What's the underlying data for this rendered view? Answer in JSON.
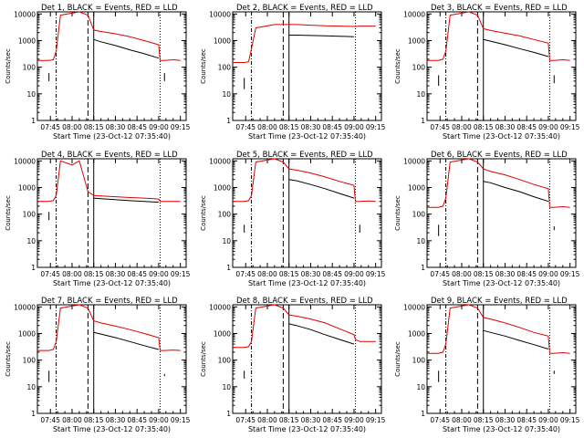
{
  "colors": {
    "events": "#000000",
    "lld": "#e00000",
    "background": "#ffffff"
  },
  "common": {
    "xlabel": "Start Time (23-Oct-12 07:35:40)",
    "ylabel": "Counts/sec",
    "x_tick_labels": [
      "07:45",
      "08:00",
      "08:15",
      "08:30",
      "08:45",
      "09:00",
      "09:15"
    ],
    "y_tick_labels": [
      "1",
      "10",
      "100",
      "1000",
      "10000"
    ],
    "ylim": [
      1,
      12000
    ],
    "y_scale": "log",
    "markers": {
      "dash_dot": "07:49",
      "dashed": "08:11",
      "solid": "08:15",
      "dotted": "09:01"
    }
  },
  "chart_data": [
    {
      "type": "line",
      "title": "Det 1, BLACK = Events, RED = LLD",
      "x": [
        "07:36",
        "07:44",
        "07:47",
        "07:49",
        "07:52",
        "08:05",
        "08:11",
        "08:15",
        "08:20",
        "08:30",
        "08:40",
        "08:50",
        "09:00",
        "09:01",
        "09:04",
        "09:10",
        "09:15"
      ],
      "series": [
        {
          "name": "LLD",
          "values": [
            180,
            180,
            190,
            400,
            9000,
            12000,
            9000,
            2500,
            2200,
            1800,
            1400,
            1000,
            700,
            180,
            180,
            190,
            180
          ]
        },
        {
          "name": "Events",
          "values": [
            null,
            null,
            null,
            null,
            null,
            null,
            null,
            1100,
            900,
            650,
            450,
            320,
            220,
            null,
            null,
            null,
            null
          ]
        }
      ],
      "short_segments": [
        {
          "time": "07:44",
          "values": [
            60,
            30
          ]
        },
        {
          "time": "09:04",
          "values": [
            60,
            30
          ]
        }
      ]
    },
    {
      "type": "line",
      "title": "Det 2, BLACK = Events, RED = LLD",
      "x": [
        "07:36",
        "07:44",
        "07:47",
        "07:49",
        "07:52",
        "08:05",
        "08:11",
        "08:15",
        "08:20",
        "08:30",
        "08:40",
        "08:50",
        "09:00",
        "09:01",
        "09:04",
        "09:10",
        "09:15"
      ],
      "series": [
        {
          "name": "LLD",
          "values": [
            150,
            150,
            160,
            500,
            3000,
            4000,
            4000,
            4000,
            4000,
            3800,
            3600,
            3500,
            3400,
            3400,
            3500,
            3500,
            3500
          ]
        },
        {
          "name": "Events",
          "values": [
            null,
            null,
            null,
            null,
            null,
            null,
            null,
            1600,
            1600,
            1550,
            1500,
            1450,
            1400,
            null,
            null,
            null,
            null
          ]
        }
      ],
      "short_segments": [
        {
          "time": "07:44",
          "values": [
            40,
            15
          ]
        }
      ]
    },
    {
      "type": "line",
      "title": "Det 3, BLACK = Events, RED = LLD",
      "x": [
        "07:36",
        "07:44",
        "07:47",
        "07:49",
        "07:52",
        "08:05",
        "08:11",
        "08:15",
        "08:20",
        "08:30",
        "08:40",
        "08:50",
        "09:00",
        "09:01",
        "09:04",
        "09:10",
        "09:15"
      ],
      "series": [
        {
          "name": "LLD",
          "values": [
            180,
            180,
            200,
            400,
            9000,
            12000,
            9000,
            2800,
            2400,
            1900,
            1500,
            1100,
            800,
            180,
            180,
            190,
            180
          ]
        },
        {
          "name": "Events",
          "values": [
            null,
            null,
            null,
            null,
            null,
            null,
            null,
            1100,
            950,
            700,
            500,
            360,
            250,
            null,
            null,
            null,
            null
          ]
        }
      ],
      "short_segments": [
        {
          "time": "07:44",
          "values": [
            50,
            20
          ]
        },
        {
          "time": "09:04",
          "values": [
            50,
            25
          ]
        }
      ]
    },
    {
      "type": "line",
      "title": "Det 4, BLACK = Events, RED = LLD",
      "x": [
        "07:36",
        "07:44",
        "07:47",
        "07:49",
        "07:52",
        "08:00",
        "08:05",
        "08:11",
        "08:15",
        "08:20",
        "08:30",
        "08:40",
        "08:50",
        "09:00",
        "09:01",
        "09:04",
        "09:10",
        "09:15"
      ],
      "series": [
        {
          "name": "LLD",
          "values": [
            300,
            300,
            320,
            500,
            10000,
            7000,
            10000,
            700,
            500,
            480,
            450,
            420,
            400,
            370,
            300,
            300,
            300,
            300
          ]
        },
        {
          "name": "Events",
          "values": [
            null,
            null,
            null,
            null,
            null,
            null,
            null,
            null,
            400,
            380,
            350,
            320,
            300,
            280,
            null,
            null,
            null,
            null
          ]
        }
      ],
      "short_segments": [
        {
          "time": "07:44",
          "values": [
            120,
            60
          ]
        }
      ]
    },
    {
      "type": "line",
      "title": "Det 5, BLACK = Events, RED = LLD",
      "x": [
        "07:36",
        "07:44",
        "07:47",
        "07:49",
        "07:52",
        "08:05",
        "08:11",
        "08:15",
        "08:20",
        "08:30",
        "08:40",
        "08:50",
        "09:00",
        "09:01",
        "09:04",
        "09:10",
        "09:15"
      ],
      "series": [
        {
          "name": "LLD",
          "values": [
            300,
            300,
            320,
            500,
            9000,
            12000,
            9000,
            5000,
            4500,
            3500,
            2500,
            1700,
            1200,
            300,
            300,
            310,
            300
          ]
        },
        {
          "name": "Events",
          "values": [
            null,
            null,
            null,
            null,
            null,
            null,
            null,
            2000,
            1800,
            1300,
            900,
            600,
            400,
            null,
            null,
            null,
            null
          ]
        }
      ],
      "short_segments": [
        {
          "time": "07:44",
          "values": [
            40,
            20
          ]
        },
        {
          "time": "09:04",
          "values": [
            40,
            20
          ]
        }
      ]
    },
    {
      "type": "line",
      "title": "Det 6, BLACK = Events, RED = LLD",
      "x": [
        "07:36",
        "07:44",
        "07:47",
        "07:49",
        "07:52",
        "08:05",
        "08:11",
        "08:15",
        "08:20",
        "08:30",
        "08:40",
        "08:50",
        "09:00",
        "09:01",
        "09:04",
        "09:10",
        "09:15"
      ],
      "series": [
        {
          "name": "LLD",
          "values": [
            180,
            180,
            200,
            400,
            9000,
            12000,
            9000,
            5000,
            4000,
            3000,
            2000,
            1300,
            900,
            180,
            180,
            190,
            180
          ]
        },
        {
          "name": "Events",
          "values": [
            null,
            null,
            null,
            null,
            null,
            null,
            null,
            1700,
            1500,
            1000,
            700,
            450,
            300,
            null,
            null,
            null,
            null
          ]
        }
      ],
      "short_segments": [
        {
          "time": "07:44",
          "values": [
            40,
            15
          ]
        },
        {
          "time": "09:04",
          "values": [
            35,
            25
          ]
        }
      ]
    },
    {
      "type": "line",
      "title": "Det 7, BLACK = Events, RED = LLD",
      "x": [
        "07:36",
        "07:44",
        "07:47",
        "07:49",
        "07:52",
        "08:05",
        "08:11",
        "08:15",
        "08:20",
        "08:30",
        "08:40",
        "08:50",
        "09:00",
        "09:01",
        "09:04",
        "09:10",
        "09:15"
      ],
      "series": [
        {
          "name": "LLD",
          "values": [
            230,
            230,
            250,
            500,
            9000,
            12000,
            9000,
            3000,
            2500,
            1900,
            1400,
            1000,
            700,
            230,
            230,
            240,
            230
          ]
        },
        {
          "name": "Events",
          "values": [
            null,
            null,
            null,
            null,
            null,
            null,
            null,
            1100,
            950,
            700,
            500,
            350,
            250,
            null,
            null,
            null,
            null
          ]
        }
      ],
      "short_segments": [
        {
          "time": "07:44",
          "values": [
            40,
            15
          ]
        },
        {
          "time": "09:04",
          "values": [
            30,
            25
          ]
        }
      ]
    },
    {
      "type": "line",
      "title": "Det 8, BLACK = Events, RED = LLD",
      "x": [
        "07:36",
        "07:44",
        "07:47",
        "07:49",
        "07:52",
        "08:05",
        "08:11",
        "08:15",
        "08:20",
        "08:30",
        "08:40",
        "08:50",
        "09:00",
        "09:01",
        "09:04",
        "09:10",
        "09:15"
      ],
      "series": [
        {
          "name": "LLD",
          "values": [
            300,
            300,
            320,
            500,
            9000,
            12000,
            9000,
            5000,
            4500,
            3500,
            2500,
            1500,
            900,
            600,
            500,
            500,
            500
          ]
        },
        {
          "name": "Events",
          "values": [
            null,
            null,
            null,
            null,
            null,
            null,
            null,
            2300,
            2000,
            1400,
            900,
            600,
            400,
            null,
            null,
            null,
            null
          ]
        }
      ],
      "short_segments": [
        {
          "time": "07:44",
          "values": [
            40,
            20
          ]
        }
      ]
    },
    {
      "type": "line",
      "title": "Det 9, BLACK = Events, RED = LLD",
      "x": [
        "07:36",
        "07:44",
        "07:47",
        "07:49",
        "07:52",
        "08:05",
        "08:11",
        "08:15",
        "08:20",
        "08:30",
        "08:40",
        "08:50",
        "09:00",
        "09:01",
        "09:04",
        "09:10",
        "09:15"
      ],
      "series": [
        {
          "name": "LLD",
          "values": [
            180,
            180,
            200,
            400,
            9000,
            12000,
            9000,
            4000,
            3500,
            2500,
            1700,
            1100,
            800,
            180,
            180,
            190,
            180
          ]
        },
        {
          "name": "Events",
          "values": [
            null,
            null,
            null,
            null,
            null,
            null,
            null,
            1300,
            1100,
            800,
            550,
            380,
            260,
            null,
            null,
            null,
            null
          ]
        }
      ],
      "short_segments": [
        {
          "time": "07:44",
          "values": [
            40,
            15
          ]
        },
        {
          "time": "09:04",
          "values": [
            40,
            30
          ]
        }
      ]
    }
  ]
}
